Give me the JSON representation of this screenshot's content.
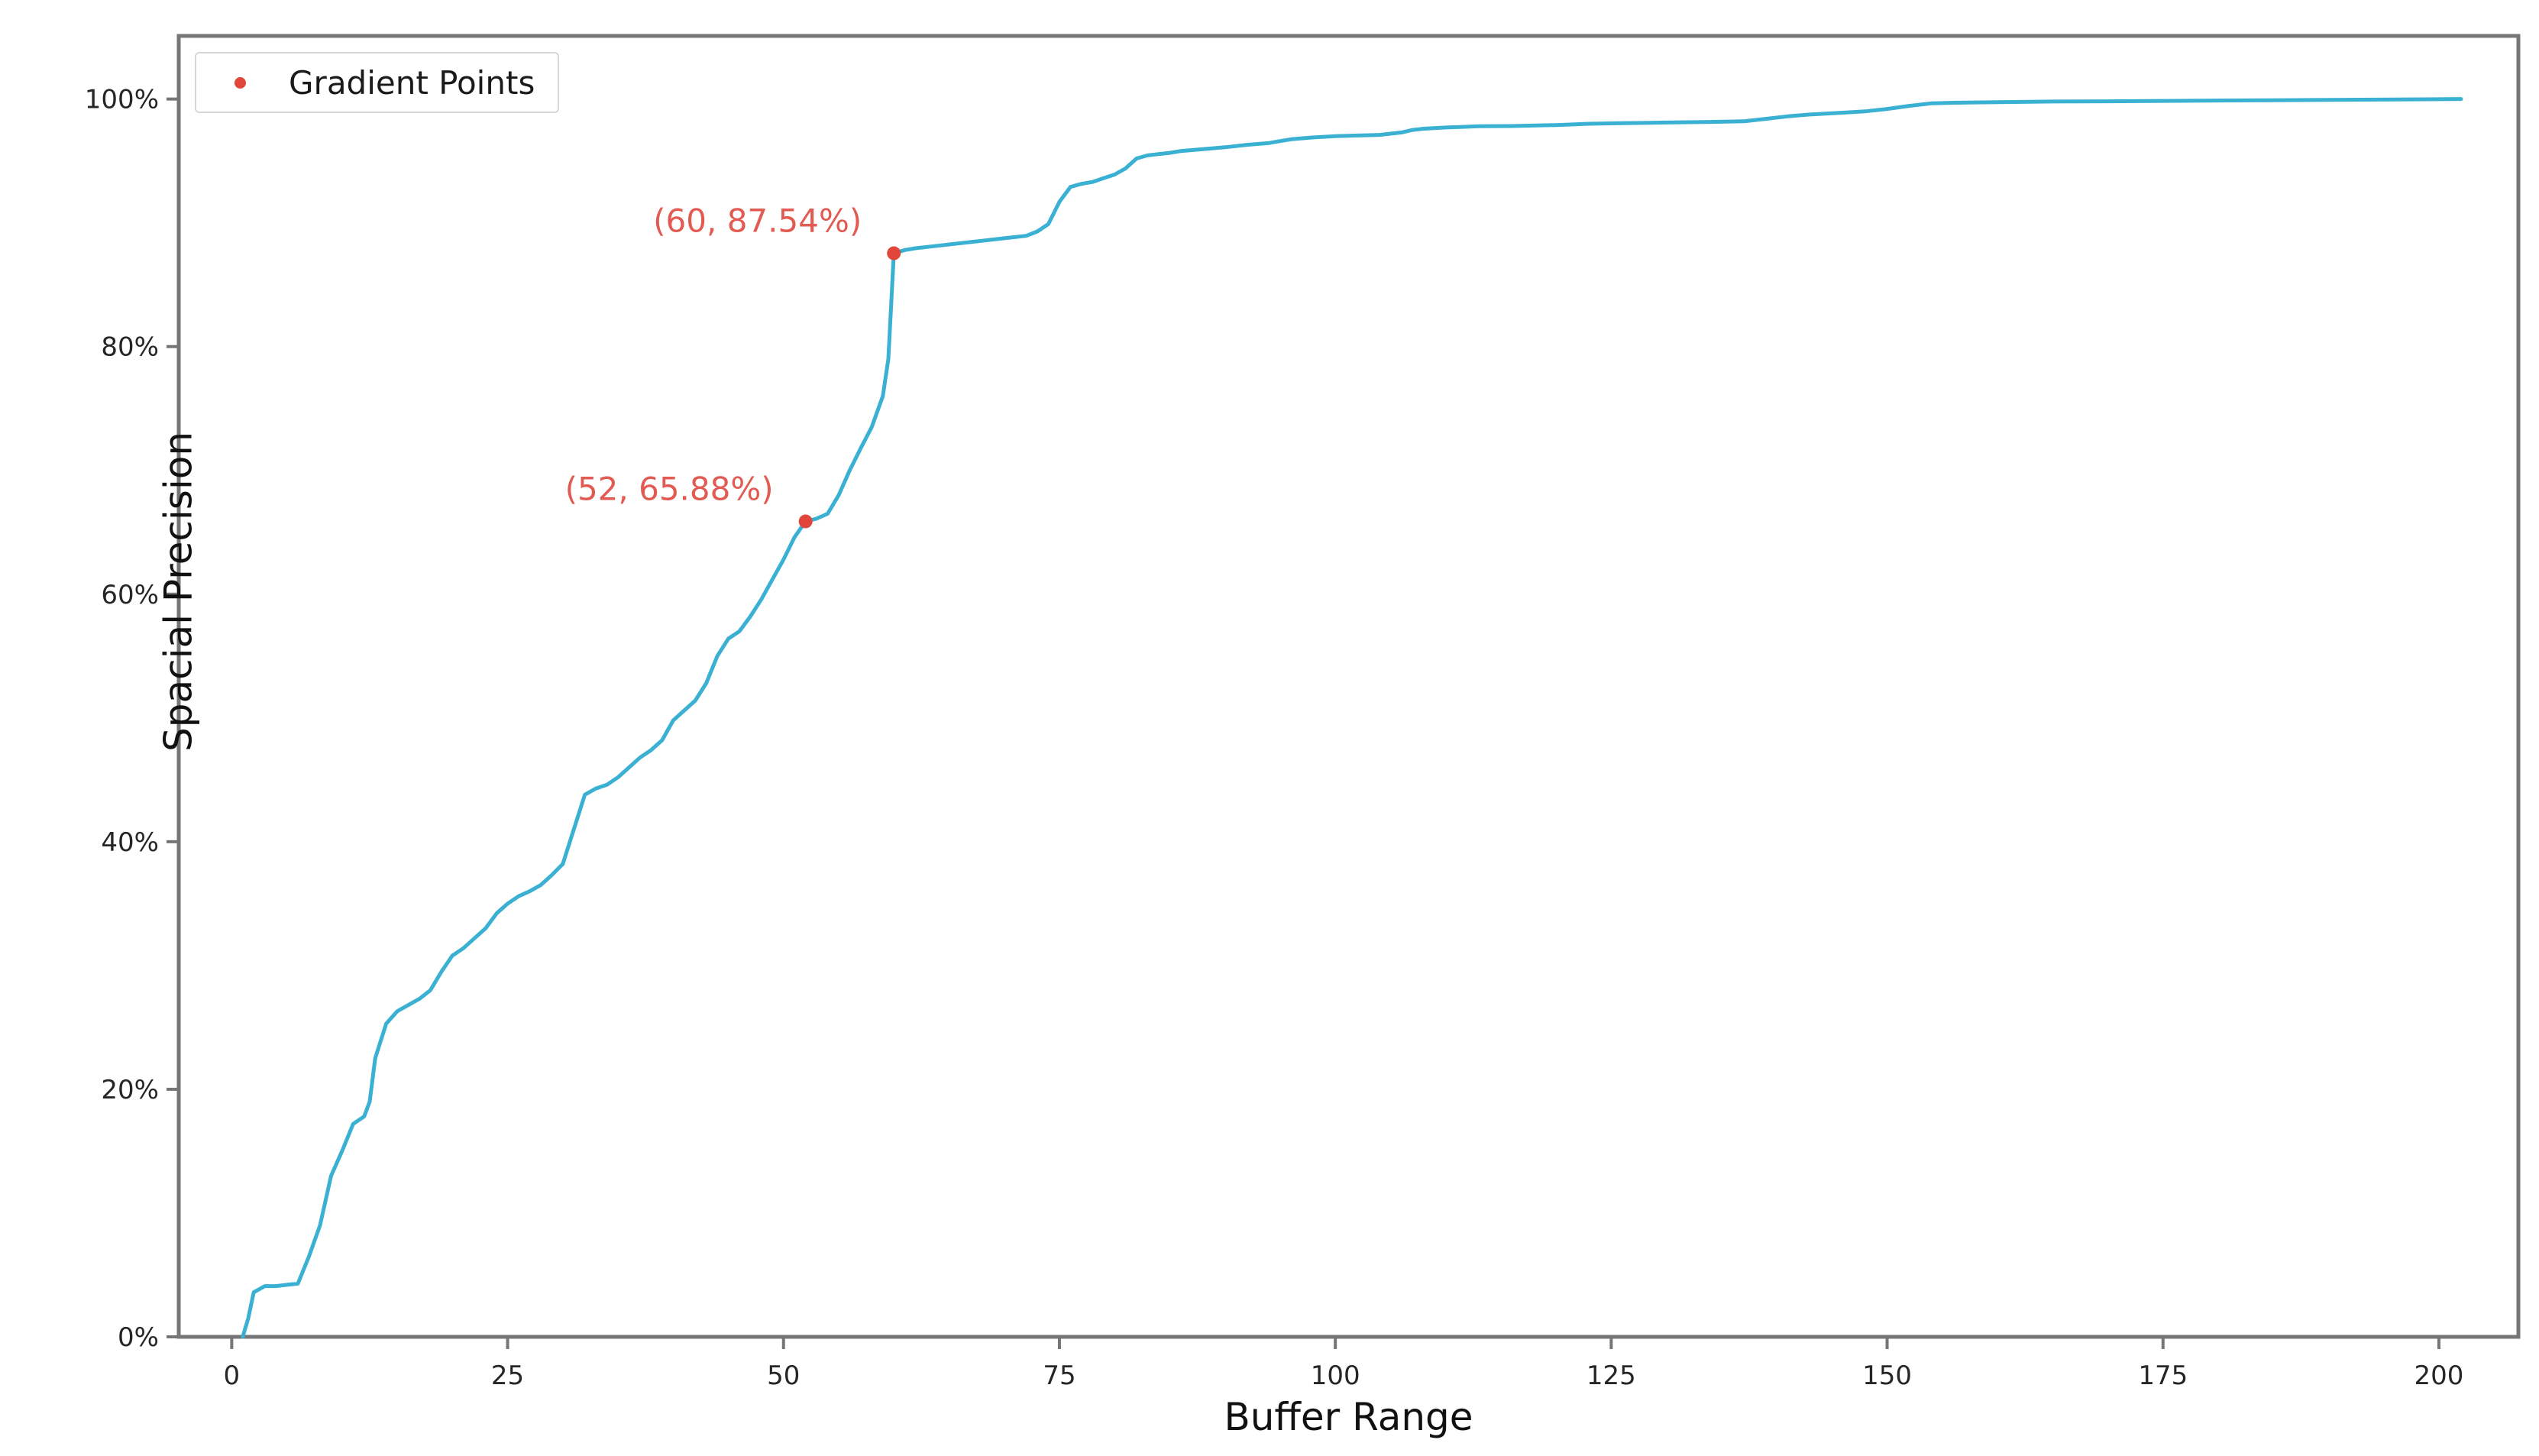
{
  "figure": {
    "background": "#ffffff",
    "xlabel": "Buffer Range",
    "ylabel": "Spacial Precision",
    "legend": {
      "items": [
        {
          "label": "Gradient Points",
          "marker": "red-dot-marker",
          "marker_color": "#e0463a"
        }
      ]
    }
  },
  "chart_data": {
    "type": "line",
    "title": "",
    "xlabel": "Buffer Range",
    "ylabel": "Spacial Precision",
    "line_color": "#3ab0d2",
    "marker_color": "#e0463a",
    "annotation_color": "#e25b52",
    "spine_color": "#767676",
    "tick_label_color": "#262626",
    "grid": false,
    "legend_position": "upper left",
    "legend_entries": [
      "Gradient Points"
    ],
    "x_ticks": [
      0,
      25,
      50,
      75,
      100,
      125,
      150,
      175,
      200
    ],
    "y_tick_values": [
      0,
      20,
      40,
      60,
      80,
      100
    ],
    "y_tick_labels": [
      "0%",
      "20%",
      "40%",
      "60%",
      "80%",
      "100%"
    ],
    "xlim": [
      -4.8,
      207.2
    ],
    "ylim": [
      0,
      105.1
    ],
    "series": [
      {
        "name": "Spacial Precision",
        "x": [
          1,
          1.5,
          2,
          3,
          4,
          5,
          6,
          7,
          8,
          9,
          10,
          11,
          12,
          12.5,
          13,
          14,
          15,
          16,
          17,
          18,
          19,
          20,
          21,
          22,
          23,
          24,
          25,
          26,
          27,
          28,
          29,
          30,
          31,
          32,
          33,
          34,
          35,
          36,
          37,
          38,
          39,
          40,
          41,
          42,
          43,
          44,
          45,
          46,
          47,
          48,
          49,
          50,
          51,
          52,
          53,
          54,
          55,
          56,
          57,
          58,
          59,
          59.5,
          60,
          61,
          62,
          64,
          66,
          68,
          70,
          72,
          73,
          74,
          75,
          76,
          77,
          78,
          79,
          80,
          81,
          82,
          83,
          84,
          85,
          86,
          88,
          90,
          92,
          94,
          95,
          96,
          98,
          100,
          102,
          104,
          106,
          107,
          108,
          110,
          113,
          116,
          120,
          123,
          126,
          130,
          134,
          137,
          139,
          141,
          143,
          146,
          148,
          150,
          152,
          154,
          156,
          160,
          165,
          170,
          175,
          180,
          185,
          190,
          196,
          202
        ],
        "y": [
          0,
          1.5,
          3.6,
          4.1,
          4.1,
          4.2,
          4.3,
          6.5,
          9.0,
          13.0,
          15.0,
          17.2,
          17.8,
          19.0,
          22.5,
          25.3,
          26.3,
          26.8,
          27.3,
          28.0,
          29.5,
          30.8,
          31.4,
          32.2,
          33.0,
          34.2,
          35.0,
          35.6,
          36.0,
          36.5,
          37.3,
          38.2,
          41.0,
          43.8,
          44.3,
          44.6,
          45.2,
          46.0,
          46.8,
          47.4,
          48.2,
          49.8,
          50.6,
          51.4,
          52.8,
          55.0,
          56.4,
          57.0,
          58.2,
          59.6,
          61.2,
          62.8,
          64.6,
          65.88,
          66.1,
          66.5,
          68.0,
          70.0,
          71.8,
          73.5,
          76.0,
          79.0,
          87.54,
          87.8,
          87.95,
          88.15,
          88.35,
          88.55,
          88.75,
          88.95,
          89.3,
          89.9,
          91.7,
          92.9,
          93.15,
          93.3,
          93.6,
          93.9,
          94.4,
          95.2,
          95.45,
          95.55,
          95.65,
          95.8,
          95.95,
          96.1,
          96.3,
          96.45,
          96.6,
          96.75,
          96.9,
          97.0,
          97.05,
          97.1,
          97.3,
          97.5,
          97.6,
          97.7,
          97.8,
          97.82,
          97.9,
          98.0,
          98.05,
          98.1,
          98.15,
          98.2,
          98.4,
          98.6,
          98.75,
          98.9,
          99.0,
          99.2,
          99.45,
          99.65,
          99.7,
          99.75,
          99.8,
          99.82,
          99.85,
          99.88,
          99.9,
          99.93,
          99.96,
          100.0
        ]
      }
    ],
    "gradient_points": [
      {
        "x": 52,
        "y": 65.88,
        "label": "(52, 65.88%)"
      },
      {
        "x": 60,
        "y": 87.54,
        "label": "(60, 87.54%)"
      }
    ]
  }
}
